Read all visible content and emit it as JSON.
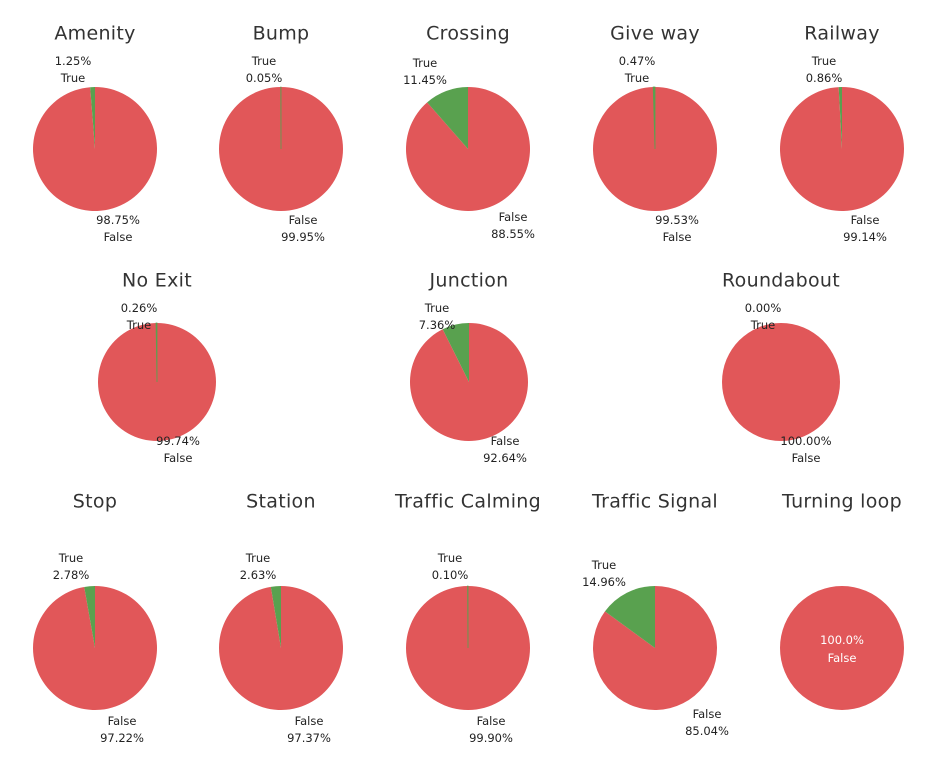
{
  "colors": {
    "false": "#e15759",
    "true": "#59a14f"
  },
  "chart_data": [
    {
      "type": "pie",
      "title": "Amenity",
      "slices": [
        {
          "label": "True",
          "value": 1.25,
          "pct_text": "1.25%"
        },
        {
          "label": "False",
          "value": 98.75,
          "pct_text": "98.75%"
        }
      ]
    },
    {
      "type": "pie",
      "title": "Bump",
      "slices": [
        {
          "label": "True",
          "value": 0.05,
          "pct_text": "0.05%"
        },
        {
          "label": "False",
          "value": 99.95,
          "pct_text": "99.95%"
        }
      ]
    },
    {
      "type": "pie",
      "title": "Crossing",
      "slices": [
        {
          "label": "True",
          "value": 11.45,
          "pct_text": "11.45%"
        },
        {
          "label": "False",
          "value": 88.55,
          "pct_text": "88.55%"
        }
      ]
    },
    {
      "type": "pie",
      "title": "Give way",
      "slices": [
        {
          "label": "True",
          "value": 0.47,
          "pct_text": "0.47%"
        },
        {
          "label": "False",
          "value": 99.53,
          "pct_text": "99.53%"
        }
      ]
    },
    {
      "type": "pie",
      "title": "Railway",
      "slices": [
        {
          "label": "True",
          "value": 0.86,
          "pct_text": "0.86%"
        },
        {
          "label": "False",
          "value": 99.14,
          "pct_text": "99.14%"
        }
      ]
    },
    {
      "type": "pie",
      "title": "No Exit",
      "slices": [
        {
          "label": "True",
          "value": 0.26,
          "pct_text": "0.26%"
        },
        {
          "label": "False",
          "value": 99.74,
          "pct_text": "99.74%"
        }
      ]
    },
    {
      "type": "pie",
      "title": "Junction",
      "slices": [
        {
          "label": "True",
          "value": 7.36,
          "pct_text": "7.36%"
        },
        {
          "label": "False",
          "value": 92.64,
          "pct_text": "92.64%"
        }
      ]
    },
    {
      "type": "pie",
      "title": "Roundabout",
      "slices": [
        {
          "label": "True",
          "value": 0.0,
          "pct_text": "0.00%"
        },
        {
          "label": "False",
          "value": 100.0,
          "pct_text": "100.00%"
        }
      ]
    },
    {
      "type": "pie",
      "title": "Stop",
      "slices": [
        {
          "label": "True",
          "value": 2.78,
          "pct_text": "2.78%"
        },
        {
          "label": "False",
          "value": 97.22,
          "pct_text": "97.22%"
        }
      ]
    },
    {
      "type": "pie",
      "title": "Station",
      "slices": [
        {
          "label": "True",
          "value": 2.63,
          "pct_text": "2.63%"
        },
        {
          "label": "False",
          "value": 97.37,
          "pct_text": "97.37%"
        }
      ]
    },
    {
      "type": "pie",
      "title": "Traffic Calming",
      "slices": [
        {
          "label": "True",
          "value": 0.1,
          "pct_text": "0.10%"
        },
        {
          "label": "False",
          "value": 99.9,
          "pct_text": "99.90%"
        }
      ]
    },
    {
      "type": "pie",
      "title": "Traffic Signal",
      "slices": [
        {
          "label": "True",
          "value": 14.96,
          "pct_text": "14.96%"
        },
        {
          "label": "False",
          "value": 85.04,
          "pct_text": "85.04%"
        }
      ]
    },
    {
      "type": "pie",
      "title": "Turning loop",
      "slices": [
        {
          "label": "False",
          "value": 100.0,
          "pct_text": "100.0%"
        }
      ]
    }
  ]
}
